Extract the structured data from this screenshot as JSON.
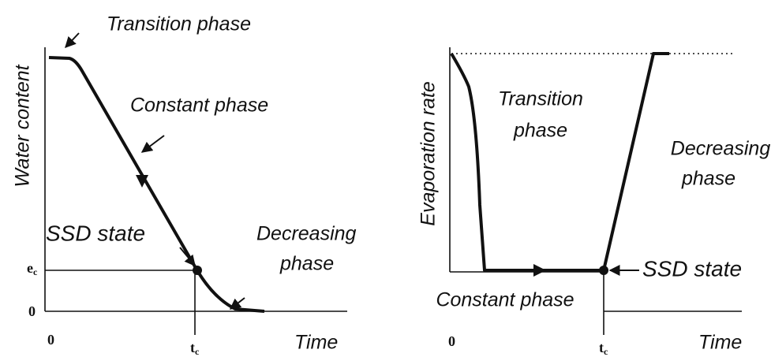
{
  "left_panel": {
    "y_axis_label": "Water content",
    "x_axis_label": "Time",
    "transition_label": "Transition phase",
    "constant_label": "Constant phase",
    "ssd_label": "SSD state",
    "decreasing_label": [
      "Decreasing",
      "phase"
    ],
    "y_marker": {
      "base": "e",
      "sub": "c"
    },
    "y_origin": "0",
    "x_origin": "0",
    "x_marker": {
      "base": "t",
      "sub": "c"
    }
  },
  "right_panel": {
    "y_axis_label": "Evaporation rate",
    "x_axis_label": "Time",
    "transition_label": [
      "Transition",
      "phase"
    ],
    "decreasing_label": [
      "Decreasing",
      "phase"
    ],
    "constant_label": "Constant phase",
    "ssd_label": "SSD state",
    "x_origin": "0",
    "x_marker": {
      "base": "t",
      "sub": "c"
    }
  }
}
